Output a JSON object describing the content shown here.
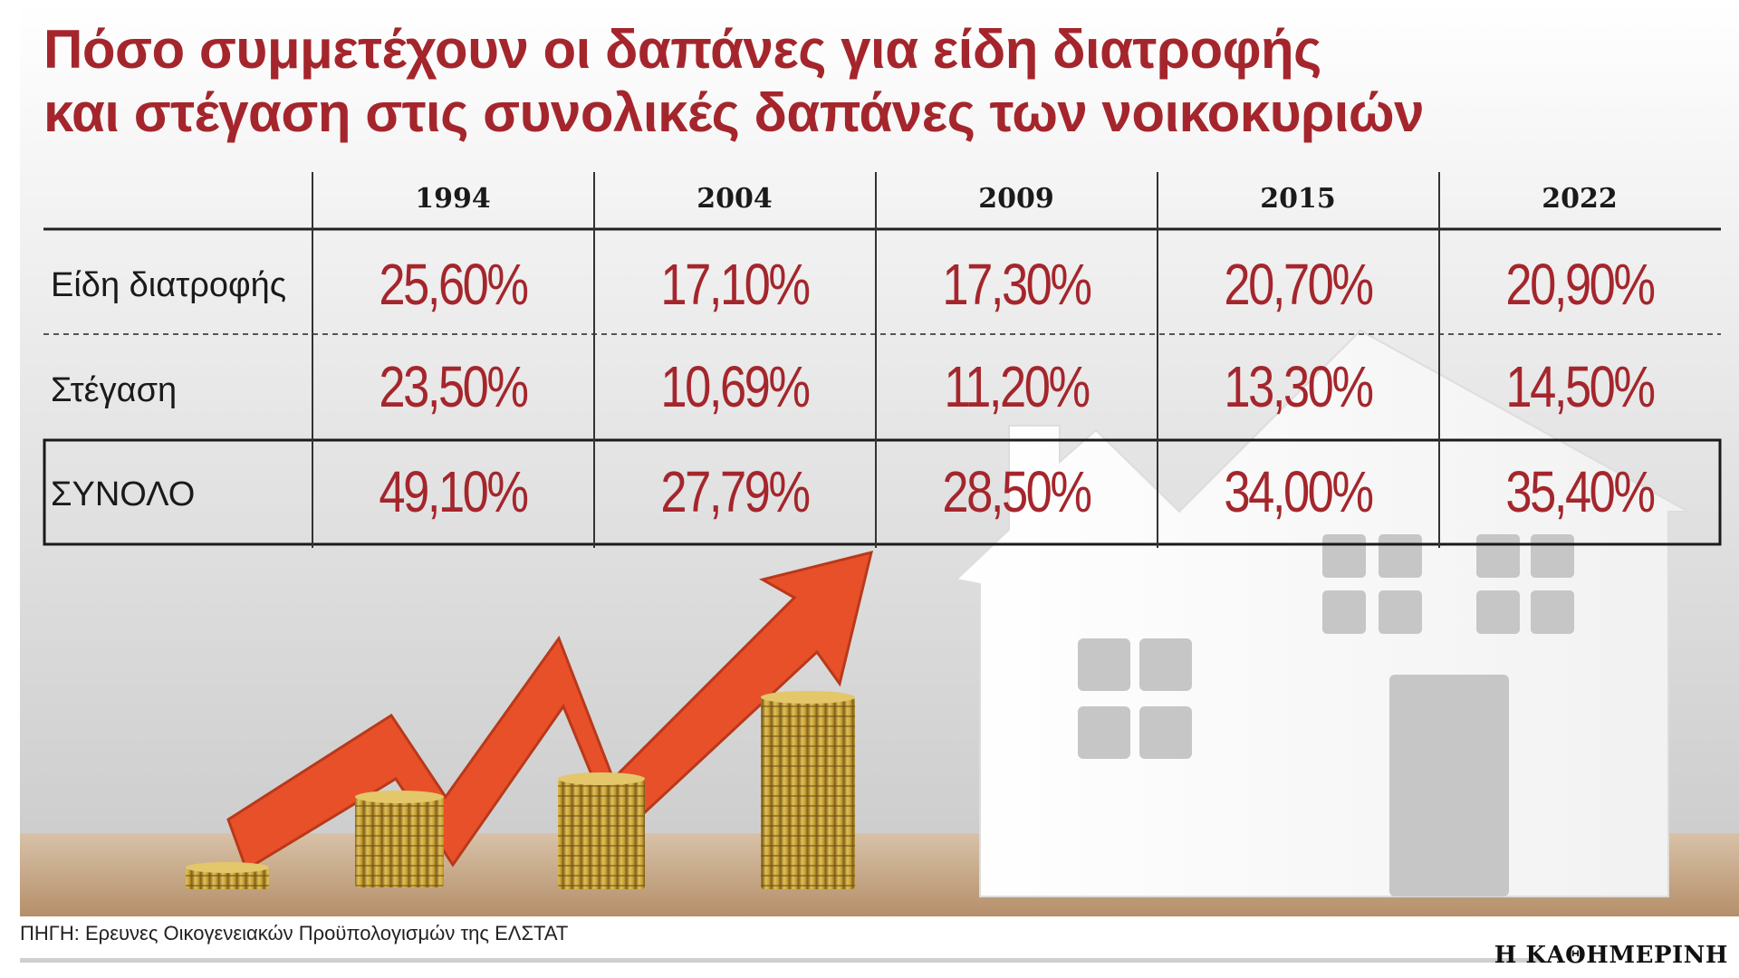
{
  "title": {
    "line1": "Πόσο συμμετέχουν οι δαπάνες για είδη διατροφής",
    "line2": "και στέγαση στις συνολικές δαπάνες των νοικοκυριών"
  },
  "colors": {
    "accent": "#a4262c",
    "arrow": "#e8502a",
    "coin": "#c9a43a"
  },
  "chart_data": {
    "type": "table",
    "columns": [
      "1994",
      "2004",
      "2009",
      "2015",
      "2022"
    ],
    "rows": [
      {
        "label": "Είδη διατροφής",
        "values": [
          "25,60%",
          "17,10%",
          "17,30%",
          "20,70%",
          "20,90%"
        ]
      },
      {
        "label": "Στέγαση",
        "values": [
          "23,50%",
          "10,69%",
          "11,20%",
          "13,30%",
          "14,50%"
        ]
      },
      {
        "label": "ΣΥΝΟΛΟ",
        "values": [
          "49,10%",
          "27,79%",
          "28,50%",
          "34,00%",
          "35,40%"
        ]
      }
    ]
  },
  "footer": {
    "source": "ΠΗΓΗ: Ερευνες Οικογενειακών Προϋπολογισμών της ΕΛΣΤΑΤ",
    "brand": "Η ΚΑΘΗΜΕΡΙΝΗ"
  }
}
